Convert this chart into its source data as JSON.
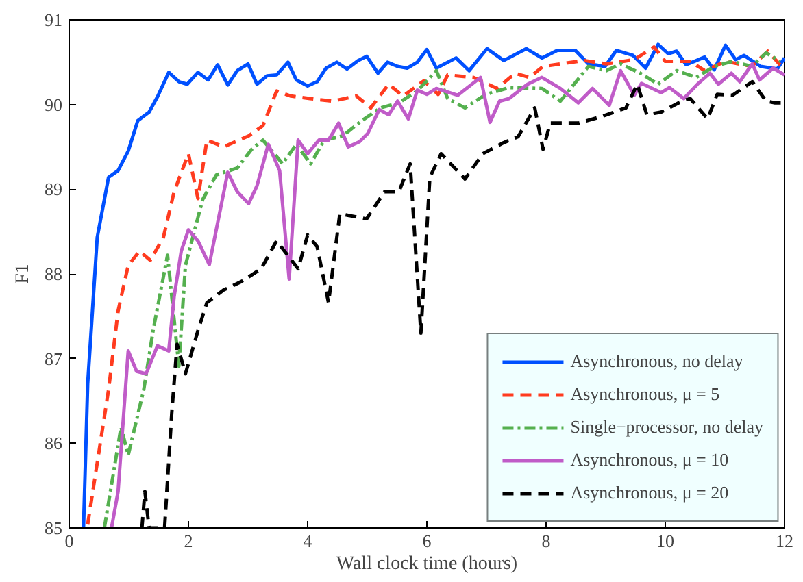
{
  "chart_data": {
    "type": "line",
    "xlabel": "Wall clock time (hours)",
    "ylabel": "F1",
    "xlim": [
      0,
      12
    ],
    "ylim": [
      85,
      91
    ],
    "xticks": [
      0,
      2,
      4,
      6,
      8,
      10,
      12
    ],
    "yticks": [
      85,
      86,
      87,
      88,
      89,
      90,
      91
    ],
    "grid": false,
    "legend": "bottom right",
    "marker": "none",
    "series": [
      {
        "name": "Asynchronous, no delay",
        "color": "#0050ff",
        "line_style": "solid",
        "x": [
          0.24,
          0.31,
          0.47,
          0.66,
          0.82,
          0.99,
          1.15,
          1.34,
          1.48,
          1.67,
          1.84,
          1.98,
          2.16,
          2.33,
          2.49,
          2.66,
          2.82,
          3.0,
          3.15,
          3.32,
          3.48,
          3.67,
          3.81,
          4.0,
          4.16,
          4.31,
          4.49,
          4.66,
          4.85,
          4.99,
          5.18,
          5.34,
          5.51,
          5.67,
          5.84,
          6.0,
          6.16,
          6.49,
          6.71,
          7.01,
          7.29,
          7.67,
          7.93,
          8.19,
          8.49,
          8.71,
          8.99,
          9.18,
          9.46,
          9.67,
          9.88,
          10.05,
          10.19,
          10.35,
          10.66,
          10.82,
          11.01,
          11.18,
          11.32,
          11.6,
          11.88,
          12.0
        ],
        "values": [
          85.0,
          86.7,
          88.43,
          89.14,
          89.22,
          89.45,
          89.81,
          89.91,
          90.09,
          90.38,
          90.27,
          90.24,
          90.38,
          90.29,
          90.47,
          90.23,
          90.4,
          90.48,
          90.24,
          90.34,
          90.35,
          90.5,
          90.29,
          90.22,
          90.27,
          90.43,
          90.5,
          90.42,
          90.52,
          90.57,
          90.37,
          90.5,
          90.45,
          90.43,
          90.5,
          90.65,
          90.43,
          90.55,
          90.4,
          90.66,
          90.52,
          90.66,
          90.55,
          90.64,
          90.64,
          90.48,
          90.45,
          90.64,
          90.58,
          90.43,
          90.71,
          90.6,
          90.63,
          90.47,
          90.56,
          90.41,
          90.7,
          90.53,
          90.58,
          90.45,
          90.42,
          90.55
        ]
      },
      {
        "name": "Asynchronous, μ = 5",
        "color": "#ff3b1f",
        "line_style": "dashed",
        "x": [
          0.31,
          0.66,
          0.82,
          0.99,
          1.18,
          1.36,
          1.58,
          1.76,
          2.0,
          2.16,
          2.31,
          2.59,
          3.01,
          3.25,
          3.48,
          3.72,
          4.04,
          4.42,
          4.82,
          5.06,
          5.36,
          5.6,
          5.95,
          6.19,
          6.35,
          6.78,
          7.18,
          7.48,
          7.72,
          7.95,
          8.64,
          9.01,
          9.48,
          9.81,
          10.0,
          10.42,
          10.66,
          11.01,
          11.45,
          11.72,
          11.95
        ],
        "values": [
          85.04,
          86.63,
          87.56,
          88.1,
          88.27,
          88.16,
          88.43,
          88.97,
          89.42,
          88.89,
          89.58,
          89.5,
          89.63,
          89.75,
          90.16,
          90.1,
          90.07,
          90.04,
          90.1,
          89.96,
          90.24,
          90.1,
          90.28,
          90.12,
          90.35,
          90.32,
          90.19,
          90.37,
          90.32,
          90.45,
          90.52,
          90.48,
          90.53,
          90.68,
          90.51,
          90.51,
          90.4,
          90.51,
          90.45,
          90.63,
          90.45
        ]
      },
      {
        "name": "Single−processor, no delay",
        "color": "#55b04f",
        "line_style": "dashdot",
        "x": [
          0.59,
          0.87,
          0.99,
          1.25,
          1.41,
          1.65,
          1.84,
          1.95,
          2.24,
          2.47,
          2.82,
          3.06,
          3.25,
          3.58,
          3.81,
          4.05,
          4.28,
          4.59,
          4.89,
          5.22,
          5.53,
          5.84,
          6.16,
          6.35,
          6.64,
          6.99,
          7.38,
          7.93,
          8.24,
          8.71,
          9.01,
          9.25,
          9.58,
          9.88,
          10.19,
          10.52,
          10.82,
          11.13,
          11.45,
          11.69,
          11.93
        ],
        "values": [
          85.0,
          86.19,
          85.86,
          86.63,
          87.34,
          88.22,
          86.91,
          88.1,
          88.88,
          89.17,
          89.25,
          89.47,
          89.58,
          89.3,
          89.53,
          89.3,
          89.58,
          89.63,
          89.8,
          89.96,
          90.02,
          90.16,
          90.4,
          90.07,
          89.96,
          90.12,
          90.2,
          90.19,
          90.04,
          90.45,
          90.4,
          90.48,
          90.37,
          90.24,
          90.4,
          90.32,
          90.45,
          90.51,
          90.45,
          90.61,
          90.51
        ]
      },
      {
        "name": "Asynchronous, μ = 10",
        "color": "#c05cc8",
        "line_style": "solid",
        "x": [
          0.71,
          0.82,
          0.99,
          1.13,
          1.29,
          1.48,
          1.67,
          1.76,
          1.88,
          2.0,
          2.16,
          2.35,
          2.66,
          2.82,
          3.01,
          3.15,
          3.34,
          3.53,
          3.69,
          3.84,
          4.0,
          4.19,
          4.35,
          4.52,
          4.68,
          4.87,
          5.01,
          5.2,
          5.36,
          5.51,
          5.69,
          5.84,
          6.0,
          6.16,
          6.52,
          6.9,
          7.06,
          7.22,
          7.38,
          7.69,
          7.93,
          8.24,
          8.54,
          8.78,
          9.06,
          9.25,
          9.48,
          9.6,
          9.93,
          10.07,
          10.31,
          10.54,
          10.75,
          10.89,
          11.11,
          11.25,
          11.46,
          11.58,
          11.81,
          12.0
        ],
        "values": [
          85.0,
          85.43,
          87.09,
          86.85,
          86.82,
          87.15,
          87.09,
          87.73,
          88.27,
          88.52,
          88.39,
          88.11,
          89.2,
          88.97,
          88.83,
          89.04,
          89.53,
          89.22,
          87.94,
          89.58,
          89.42,
          89.58,
          89.58,
          89.78,
          89.5,
          89.56,
          89.66,
          89.94,
          89.88,
          90.04,
          89.83,
          90.17,
          90.12,
          90.19,
          90.11,
          90.32,
          89.79,
          90.04,
          90.07,
          90.24,
          90.32,
          90.19,
          90.02,
          90.19,
          89.99,
          90.4,
          90.11,
          90.25,
          90.14,
          90.2,
          90.07,
          90.24,
          90.37,
          90.24,
          90.37,
          90.27,
          90.48,
          90.29,
          90.43,
          90.35
        ]
      },
      {
        "name": "Asynchronous, μ = 20",
        "color": "#000000",
        "line_style": "dashed",
        "x": [
          1.22,
          1.27,
          1.34,
          1.6,
          1.72,
          1.81,
          1.95,
          2.16,
          2.31,
          2.59,
          2.89,
          3.22,
          3.48,
          3.84,
          4.0,
          4.16,
          4.35,
          4.54,
          4.99,
          5.29,
          5.53,
          5.72,
          5.9,
          6.05,
          6.24,
          6.64,
          6.94,
          7.29,
          7.53,
          7.81,
          7.95,
          8.07,
          8.54,
          8.94,
          9.34,
          9.53,
          9.69,
          9.93,
          10.28,
          10.42,
          10.71,
          10.87,
          11.13,
          11.46,
          11.69,
          11.84,
          11.95
        ],
        "values": [
          85.0,
          85.43,
          85.0,
          85.0,
          86.35,
          87.17,
          86.82,
          87.33,
          87.66,
          87.81,
          87.91,
          88.06,
          88.39,
          88.06,
          88.46,
          88.32,
          87.66,
          88.71,
          88.65,
          88.97,
          88.97,
          89.3,
          87.3,
          89.14,
          89.42,
          89.12,
          89.42,
          89.55,
          89.62,
          89.96,
          89.47,
          89.78,
          89.78,
          89.86,
          89.96,
          90.24,
          89.88,
          89.91,
          90.04,
          90.07,
          89.83,
          90.12,
          90.11,
          90.27,
          90.04,
          90.02,
          90.02
        ]
      }
    ]
  }
}
